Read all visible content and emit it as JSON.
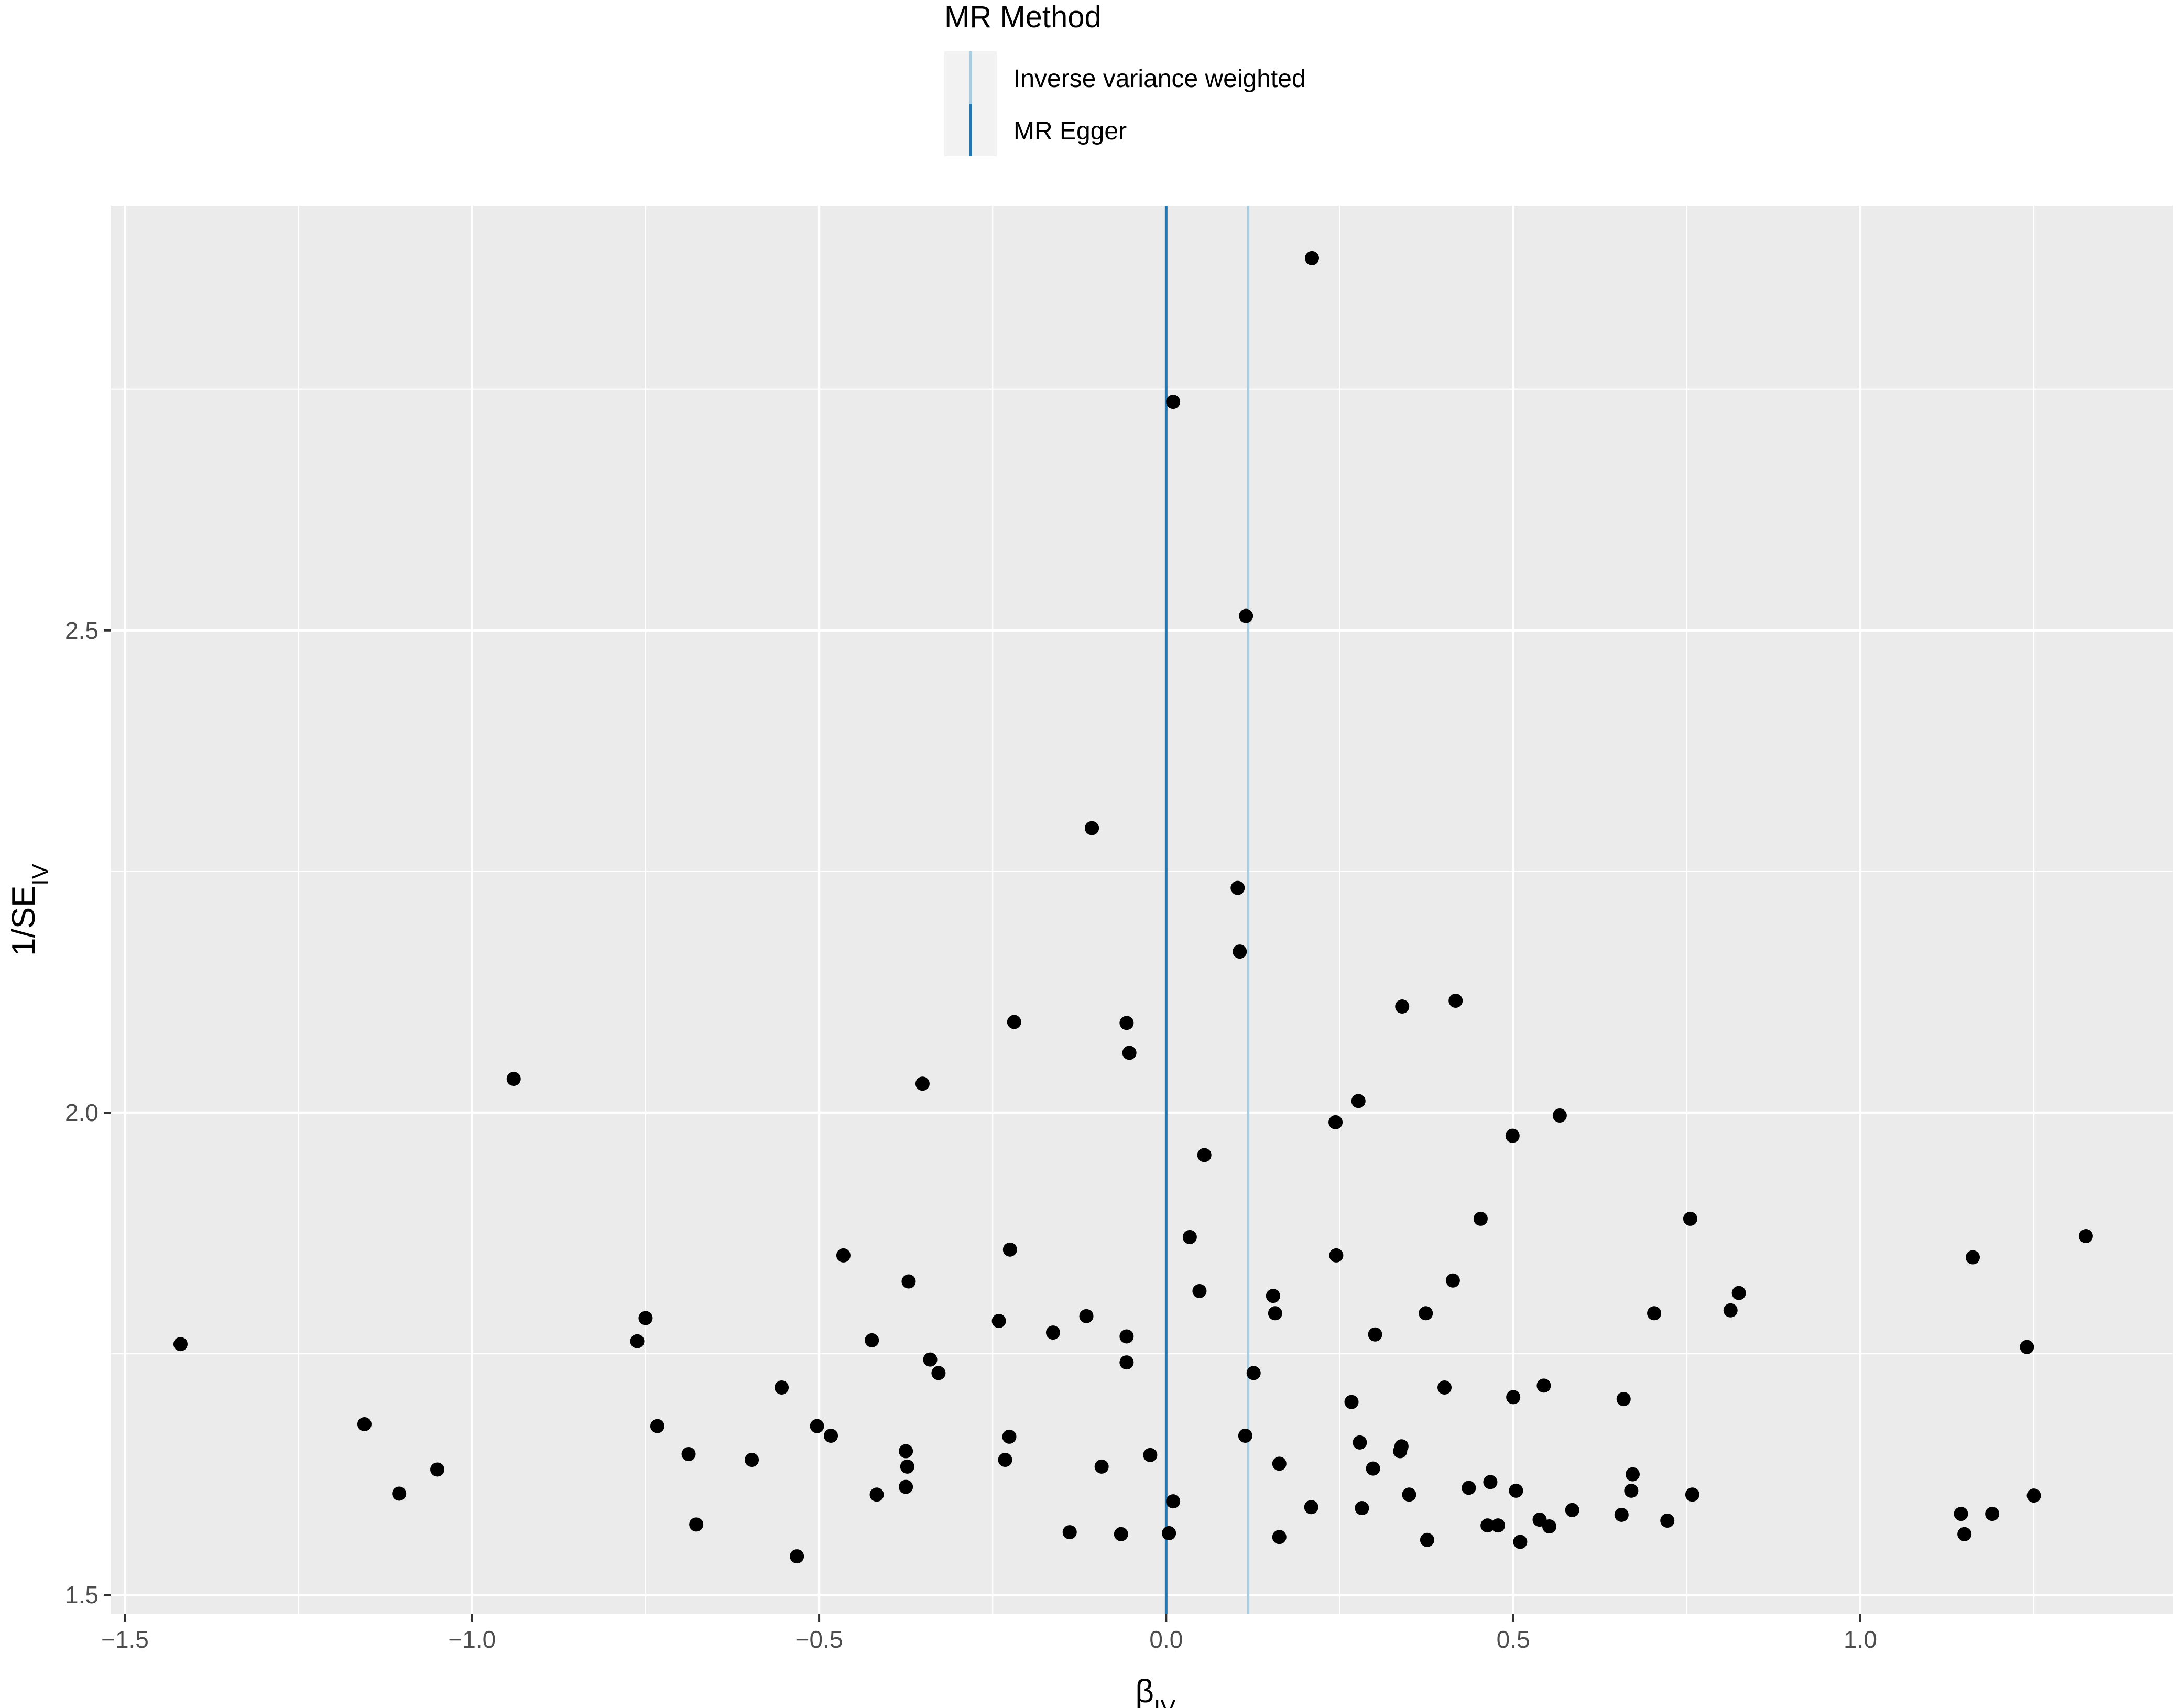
{
  "chart_data": {
    "type": "scatter",
    "xlabel_main": "β",
    "xlabel_sub": "IV",
    "ylabel_main": "1/SE",
    "ylabel_sub": "IV",
    "xlim": [
      -1.52,
      1.45
    ],
    "ylim": [
      1.48,
      2.94
    ],
    "x_ticks": [
      {
        "value": -1.5,
        "label": "−1.5"
      },
      {
        "value": -1.0,
        "label": "−1.0"
      },
      {
        "value": -0.5,
        "label": "−0.5"
      },
      {
        "value": 0.0,
        "label": "0.0"
      },
      {
        "value": 0.5,
        "label": "0.5"
      },
      {
        "value": 1.0,
        "label": "1.0"
      }
    ],
    "y_ticks": [
      {
        "value": 1.5,
        "label": "1.5"
      },
      {
        "value": 2.0,
        "label": "2.0"
      },
      {
        "value": 2.5,
        "label": "2.5"
      }
    ],
    "grid": true,
    "panel_background": "#ebebeb",
    "grid_color": "#ffffff",
    "point_color": "#000000",
    "legend": {
      "title": "MR Method",
      "placement": "top",
      "entries": [
        {
          "label": "Inverse variance weighted",
          "color": "#a6cee3"
        },
        {
          "label": "MR Egger",
          "color": "#1f78b4"
        }
      ]
    },
    "vlines": [
      {
        "method": "Inverse variance weighted",
        "x": 0.118,
        "color": "#a6cee3"
      },
      {
        "method": "MR Egger",
        "x": 0.0,
        "color": "#1f78b4"
      }
    ],
    "points": [
      [
        0.21,
        2.886
      ],
      [
        0.01,
        2.737
      ],
      [
        0.115,
        2.515
      ],
      [
        -0.107,
        2.295
      ],
      [
        0.103,
        2.233
      ],
      [
        0.106,
        2.167
      ],
      [
        0.417,
        2.116
      ],
      [
        0.34,
        2.11
      ],
      [
        -0.219,
        2.094
      ],
      [
        -0.057,
        2.093
      ],
      [
        -0.053,
        2.062
      ],
      [
        -0.94,
        2.035
      ],
      [
        -0.351,
        2.03
      ],
      [
        0.277,
        2.012
      ],
      [
        0.567,
        1.997
      ],
      [
        0.244,
        1.99
      ],
      [
        0.499,
        1.976
      ],
      [
        0.055,
        1.956
      ],
      [
        0.453,
        1.89
      ],
      [
        0.755,
        1.89
      ],
      [
        0.034,
        1.871
      ],
      [
        1.325,
        1.872
      ],
      [
        -0.225,
        1.858
      ],
      [
        -0.465,
        1.852
      ],
      [
        0.245,
        1.852
      ],
      [
        1.162,
        1.85
      ],
      [
        -0.371,
        1.825
      ],
      [
        0.413,
        1.826
      ],
      [
        0.048,
        1.815
      ],
      [
        0.825,
        1.813
      ],
      [
        0.154,
        1.81
      ],
      [
        0.813,
        1.795
      ],
      [
        0.157,
        1.792
      ],
      [
        0.374,
        1.792
      ],
      [
        0.703,
        1.792
      ],
      [
        -0.75,
        1.787
      ],
      [
        -0.115,
        1.789
      ],
      [
        -0.241,
        1.784
      ],
      [
        -0.163,
        1.772
      ],
      [
        0.301,
        1.77
      ],
      [
        -0.057,
        1.768
      ],
      [
        -0.762,
        1.763
      ],
      [
        -0.424,
        1.764
      ],
      [
        -1.42,
        1.76
      ],
      [
        1.24,
        1.757
      ],
      [
        -0.34,
        1.744
      ],
      [
        -0.057,
        1.741
      ],
      [
        -0.328,
        1.73
      ],
      [
        0.126,
        1.73
      ],
      [
        -0.554,
        1.715
      ],
      [
        0.401,
        1.715
      ],
      [
        0.544,
        1.717
      ],
      [
        0.5,
        1.705
      ],
      [
        0.267,
        1.7
      ],
      [
        0.659,
        1.703
      ],
      [
        -1.155,
        1.677
      ],
      [
        -0.733,
        1.675
      ],
      [
        -0.503,
        1.675
      ],
      [
        -0.483,
        1.665
      ],
      [
        -0.226,
        1.664
      ],
      [
        0.114,
        1.665
      ],
      [
        0.279,
        1.658
      ],
      [
        0.339,
        1.654
      ],
      [
        -0.375,
        1.649
      ],
      [
        0.337,
        1.649
      ],
      [
        -0.688,
        1.646
      ],
      [
        -0.023,
        1.645
      ],
      [
        -0.597,
        1.64
      ],
      [
        -0.232,
        1.64
      ],
      [
        -0.373,
        1.633
      ],
      [
        -0.093,
        1.633
      ],
      [
        0.163,
        1.636
      ],
      [
        0.298,
        1.631
      ],
      [
        -1.05,
        1.63
      ],
      [
        0.672,
        1.625
      ],
      [
        -0.375,
        1.612
      ],
      [
        0.436,
        1.611
      ],
      [
        0.467,
        1.617
      ],
      [
        -1.105,
        1.605
      ],
      [
        -0.417,
        1.604
      ],
      [
        0.35,
        1.604
      ],
      [
        0.504,
        1.608
      ],
      [
        0.67,
        1.608
      ],
      [
        0.758,
        1.604
      ],
      [
        1.25,
        1.603
      ],
      [
        0.01,
        1.597
      ],
      [
        0.209,
        1.591
      ],
      [
        0.282,
        1.59
      ],
      [
        0.585,
        1.588
      ],
      [
        0.656,
        1.583
      ],
      [
        1.145,
        1.584
      ],
      [
        1.19,
        1.584
      ],
      [
        0.538,
        1.578
      ],
      [
        0.722,
        1.577
      ],
      [
        -0.677,
        1.573
      ],
      [
        0.463,
        1.572
      ],
      [
        0.478,
        1.572
      ],
      [
        0.552,
        1.571
      ],
      [
        -0.139,
        1.565
      ],
      [
        0.004,
        1.564
      ],
      [
        -0.065,
        1.563
      ],
      [
        1.15,
        1.563
      ],
      [
        0.163,
        1.56
      ],
      [
        0.376,
        1.557
      ],
      [
        0.51,
        1.555
      ],
      [
        -0.532,
        1.54
      ]
    ]
  }
}
